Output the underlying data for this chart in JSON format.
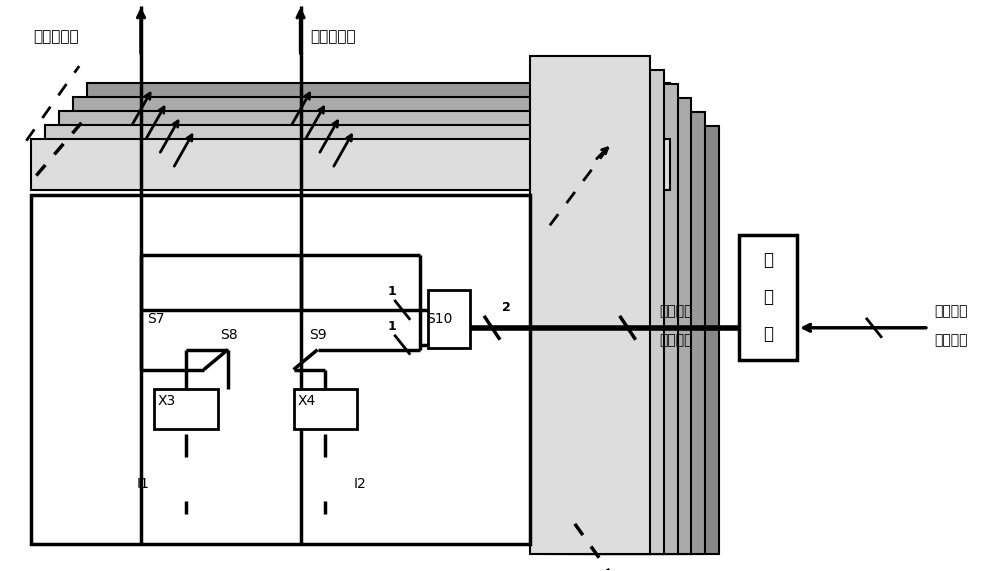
{
  "fig_width": 10.0,
  "fig_height": 5.71,
  "dpi": 100,
  "bg": "#ffffff",
  "text": {
    "out1": "第一输出端",
    "out2": "第二输出端",
    "S7": "S7",
    "S8": "S8",
    "S9": "S9",
    "S10": "S10",
    "X3": "X3",
    "X4": "X4",
    "I1": "I1",
    "I2": "I2",
    "num1a": "1",
    "num1b": "1",
    "num2": "2",
    "diff1": "差分控制",
    "diff2": "信号总线",
    "dec1": "译",
    "dec2": "码",
    "dec3": "器",
    "din1": "数字输入",
    "din2": "信号总线"
  },
  "layer_right_colors": [
    "#888888",
    "#999999",
    "#aaaaaa",
    "#b8b8b8",
    "#cccccc",
    "#dddddd",
    "#eeeeee"
  ],
  "layer_top_colors": [
    "#888888",
    "#999999",
    "#aaaaaa",
    "#bbbbbb",
    "#cccccc",
    "#dddddd"
  ]
}
